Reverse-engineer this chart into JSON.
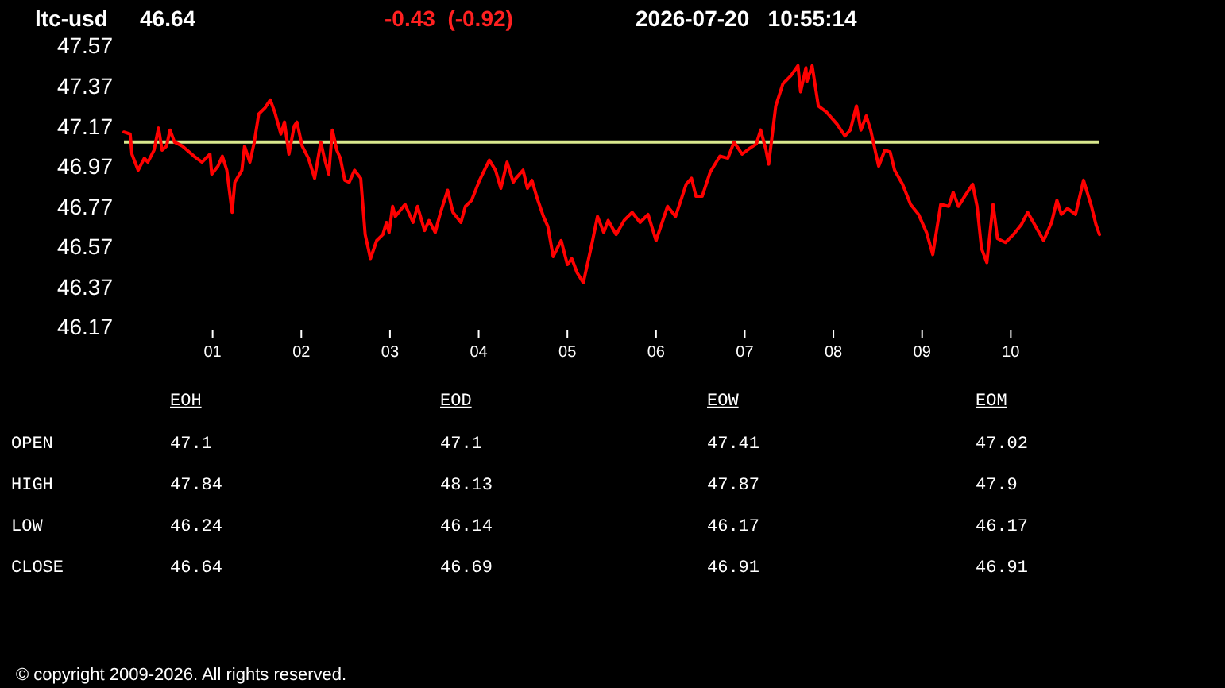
{
  "chart_data": [
    {
      "type": "line",
      "title": "ltc-usd",
      "annotations": [
        "46.64",
        "-0.43  (-0.92)",
        "2026-07-20   10:55:14"
      ],
      "xlim": [
        0,
        11
      ],
      "xticks": [
        {
          "value": 1,
          "label": "01"
        },
        {
          "value": 2,
          "label": "02"
        },
        {
          "value": 3,
          "label": "03"
        },
        {
          "value": 4,
          "label": "04"
        },
        {
          "value": 5,
          "label": "05"
        },
        {
          "value": 6,
          "label": "06"
        },
        {
          "value": 7,
          "label": "07"
        },
        {
          "value": 8,
          "label": "08"
        },
        {
          "value": 9,
          "label": "09"
        },
        {
          "value": 10,
          "label": "10"
        }
      ],
      "ylim": [
        46.17,
        47.57
      ],
      "yticks": [
        46.17,
        46.37,
        46.57,
        46.77,
        46.97,
        47.17,
        47.37,
        47.57
      ],
      "ref_lines": [
        {
          "axis": "y",
          "value": 47.1,
          "color": "#d9e88e"
        }
      ],
      "series": [
        {
          "color": "#ff0000",
          "x": [
            0,
            0.07,
            0.09,
            0.16,
            0.23,
            0.27,
            0.34,
            0.39,
            0.43,
            0.48,
            0.52,
            0.57,
            0.66,
            0.79,
            0.88,
            0.97,
            0.99,
            1.06,
            1.11,
            1.16,
            1.22,
            1.25,
            1.33,
            1.36,
            1.42,
            1.47,
            1.52,
            1.59,
            1.65,
            1.7,
            1.77,
            1.81,
            1.86,
            1.92,
            1.95,
            2.01,
            2.08,
            2.15,
            2.22,
            2.26,
            2.31,
            2.35,
            2.4,
            2.44,
            2.49,
            2.54,
            2.6,
            2.67,
            2.72,
            2.78,
            2.85,
            2.92,
            2.96,
            2.99,
            3.03,
            3.06,
            3.17,
            3.26,
            3.31,
            3.39,
            3.44,
            3.51,
            3.57,
            3.65,
            3.71,
            3.8,
            3.85,
            3.92,
            4.01,
            4.12,
            4.19,
            4.25,
            4.32,
            4.39,
            4.42,
            4.5,
            4.55,
            4.6,
            4.66,
            4.73,
            4.78,
            4.84,
            4.93,
            5.0,
            5.05,
            5.11,
            5.18,
            5.28,
            5.34,
            5.41,
            5.46,
            5.55,
            5.64,
            5.73,
            5.82,
            5.91,
            6.0,
            6.13,
            6.22,
            6.34,
            6.4,
            6.45,
            6.52,
            6.61,
            6.72,
            6.81,
            6.88,
            6.97,
            7.06,
            7.13,
            7.18,
            7.24,
            7.27,
            7.35,
            7.43,
            7.52,
            7.6,
            7.63,
            7.69,
            7.7,
            7.76,
            7.83,
            7.92,
            8.04,
            8.13,
            8.19,
            8.26,
            8.31,
            8.37,
            8.42,
            8.51,
            8.58,
            8.64,
            8.69,
            8.78,
            8.87,
            8.96,
            9.05,
            9.12,
            9.21,
            9.3,
            9.35,
            9.41,
            9.48,
            9.57,
            9.62,
            9.67,
            9.73,
            9.8,
            9.85,
            9.94,
            10.03,
            10.12,
            10.19,
            10.28,
            10.37,
            10.46,
            10.52,
            10.57,
            10.64,
            10.73,
            10.82,
            10.91,
            10.96,
            11.0
          ],
          "values": [
            47.15,
            47.14,
            47.04,
            46.96,
            47.02,
            47.0,
            47.06,
            47.17,
            47.06,
            47.08,
            47.16,
            47.1,
            47.08,
            47.03,
            47.0,
            47.04,
            46.94,
            46.98,
            47.03,
            46.96,
            46.75,
            46.9,
            46.96,
            47.08,
            47.0,
            47.1,
            47.24,
            47.27,
            47.31,
            47.25,
            47.14,
            47.2,
            47.04,
            47.18,
            47.2,
            47.08,
            47.02,
            46.92,
            47.1,
            47.02,
            46.94,
            47.16,
            47.06,
            47.02,
            46.91,
            46.9,
            46.96,
            46.92,
            46.64,
            46.52,
            46.61,
            46.64,
            46.7,
            46.65,
            46.78,
            46.73,
            46.79,
            46.7,
            46.78,
            46.66,
            46.71,
            46.65,
            46.75,
            46.86,
            46.75,
            46.7,
            46.78,
            46.81,
            46.91,
            47.01,
            46.96,
            46.87,
            47.0,
            46.9,
            46.92,
            46.96,
            46.87,
            46.91,
            46.82,
            46.73,
            46.68,
            46.53,
            46.61,
            46.49,
            46.52,
            46.45,
            46.4,
            46.6,
            46.73,
            46.65,
            46.71,
            46.64,
            46.71,
            46.75,
            46.7,
            46.74,
            46.61,
            46.78,
            46.73,
            46.89,
            46.92,
            46.83,
            46.83,
            46.95,
            47.03,
            47.02,
            47.1,
            47.04,
            47.07,
            47.09,
            47.16,
            47.06,
            46.99,
            47.28,
            47.39,
            47.43,
            47.48,
            47.35,
            47.47,
            47.4,
            47.48,
            47.28,
            47.25,
            47.19,
            47.13,
            47.16,
            47.28,
            47.16,
            47.23,
            47.16,
            46.98,
            47.06,
            47.05,
            46.96,
            46.89,
            46.79,
            46.74,
            46.65,
            46.54,
            46.79,
            46.78,
            46.85,
            46.78,
            46.83,
            46.89,
            46.78,
            46.57,
            46.5,
            46.79,
            46.62,
            46.6,
            46.64,
            46.69,
            46.75,
            46.68,
            46.61,
            46.7,
            46.81,
            46.74,
            46.77,
            46.74,
            46.91,
            46.78,
            46.69,
            46.64
          ]
        }
      ]
    },
    {
      "type": "other",
      "categories": [
        "EOH",
        "EOD",
        "EOW",
        "EOM"
      ],
      "y_categories": [
        "OPEN",
        "HIGH",
        "LOW",
        "CLOSE"
      ],
      "cell_labels": [
        [
          "47.1",
          "47.1",
          "47.41",
          "47.02"
        ],
        [
          "47.84",
          "48.13",
          "47.87",
          "47.9"
        ],
        [
          "46.24",
          "46.14",
          "46.17",
          "46.17"
        ],
        [
          "46.64",
          "46.69",
          "46.91",
          "46.91"
        ]
      ],
      "annotations": [
        "© copyright 2009-2026. All rights reserved."
      ]
    }
  ]
}
